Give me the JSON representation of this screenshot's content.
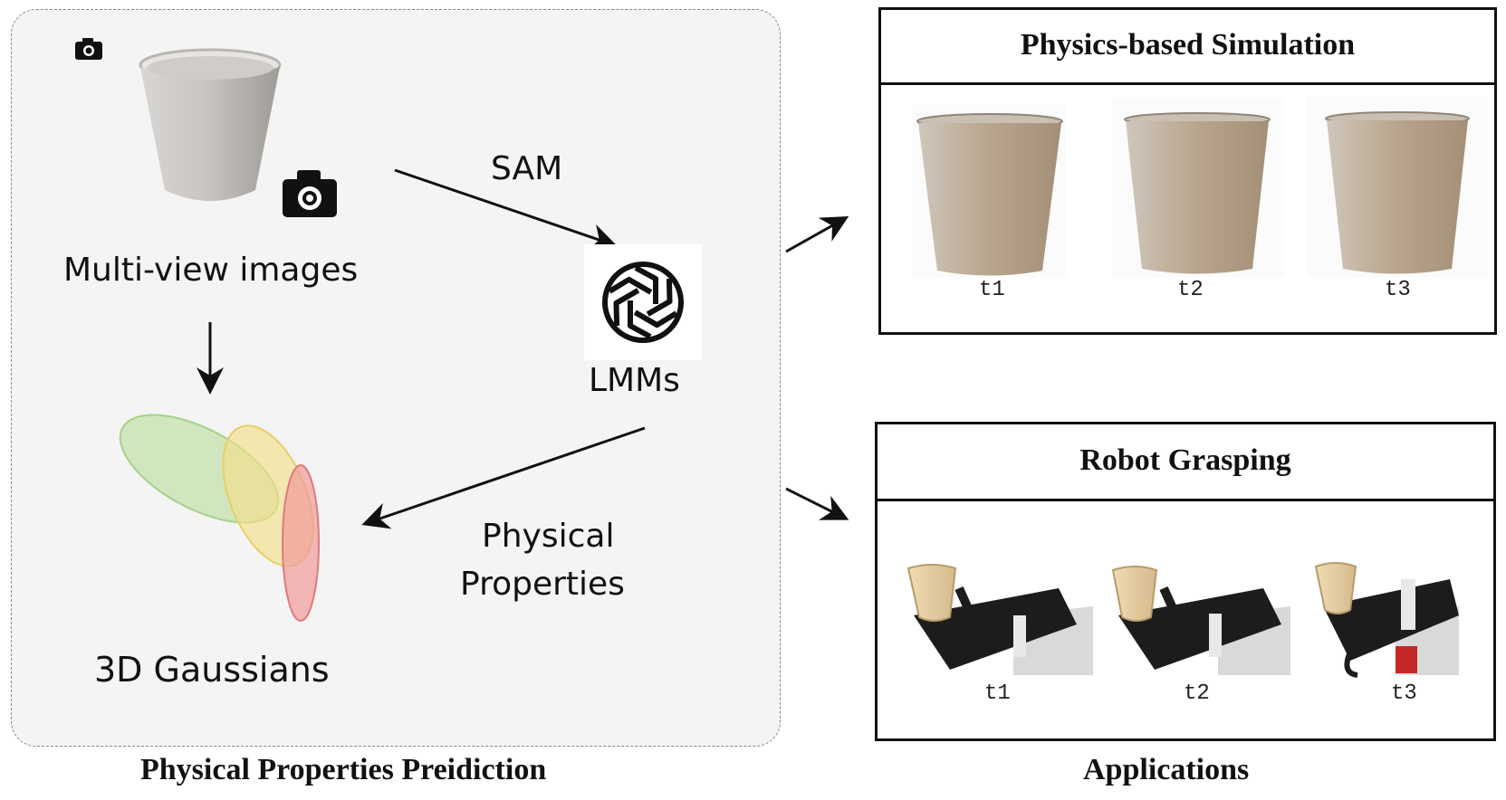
{
  "left_panel": {
    "multiview_label": "Multi-view images",
    "gaussians_label": "3D Gaussians",
    "sam_label": "SAM",
    "lmm_label": "LMMs",
    "physical_line1": "Physical",
    "physical_line2": "Properties",
    "caption": "Physical Properties Preidiction"
  },
  "right_panel": {
    "simulation": {
      "title": "Physics-based Simulation",
      "frames": [
        "t1",
        "t2",
        "t3"
      ]
    },
    "grasping": {
      "title": "Robot Grasping",
      "frames": [
        "t1",
        "t2",
        "t3"
      ]
    },
    "caption": "Applications"
  },
  "colors": {
    "panel_bg": "#f4f4f4",
    "gaussian_green": "#b5dc9a",
    "gaussian_yellow": "#f3df8a",
    "gaussian_red": "#ef9a9a",
    "cup_sim": "#b9a790",
    "cup_grasp": "#e4ccA0"
  },
  "icons": [
    "camera-icon",
    "openai-logo-icon",
    "arrow-icon"
  ]
}
